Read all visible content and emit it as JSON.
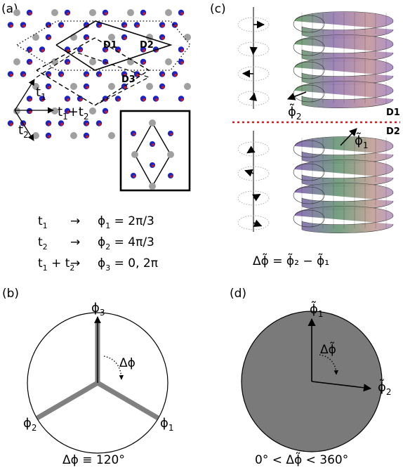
{
  "panels": {
    "a": {
      "label": "(a)",
      "domains": [
        "D1",
        "D2",
        "D3"
      ],
      "vectors": [
        "t",
        "1",
        "t",
        "2",
        "t",
        "1",
        "+",
        "t",
        "2"
      ],
      "equations": [
        {
          "left_main": "t",
          "left_sub": "1",
          "arrow": "→",
          "phi": "ϕ",
          "phi_sub": "1",
          "value": " = 2π/3"
        },
        {
          "left_main": "t",
          "left_sub": "2",
          "arrow": "→",
          "phi": "ϕ",
          "phi_sub": "2",
          "value": " = 4π/3"
        },
        {
          "left_main": "t",
          "left_sub": "1",
          "left_plus": " + t",
          "left_sub2": "2",
          "arrow": "→",
          "phi": "ϕ",
          "phi_sub": "3",
          "value": " = 0, 2π"
        }
      ]
    },
    "b": {
      "label": "(b)",
      "phi3": "ϕ",
      "phi3_sub": "3",
      "phi2": "ϕ",
      "phi2_sub": "2",
      "phi1": "ϕ",
      "phi1_sub": "1",
      "delta": "Δϕ",
      "caption": "Δϕ ≡ 120°"
    },
    "c": {
      "label": "(c)",
      "d1": "D1",
      "d2": "D2",
      "phi2_tilde": "ϕ̃",
      "phi2_sub": "2",
      "phi1_tilde": "ϕ̃",
      "phi1_sub": "1",
      "equation": "Δϕ̃ = ϕ̃₂ − ϕ̃₁"
    },
    "d": {
      "label": "(d)",
      "phi1": "ϕ̃",
      "phi1_sub": "1",
      "phi2": "ϕ̃",
      "phi2_sub": "2",
      "delta": "Δϕ̃",
      "caption": "0° < Δϕ̃ < 360°"
    }
  },
  "colors": {
    "atom_gray": "#a0a0a0",
    "atom_blue": "#1a23c8",
    "atom_red": "#c81a1a",
    "dashed_red": "#e0151a",
    "disk_gray": "#7a7a7a",
    "thick_gray": "#808080"
  }
}
